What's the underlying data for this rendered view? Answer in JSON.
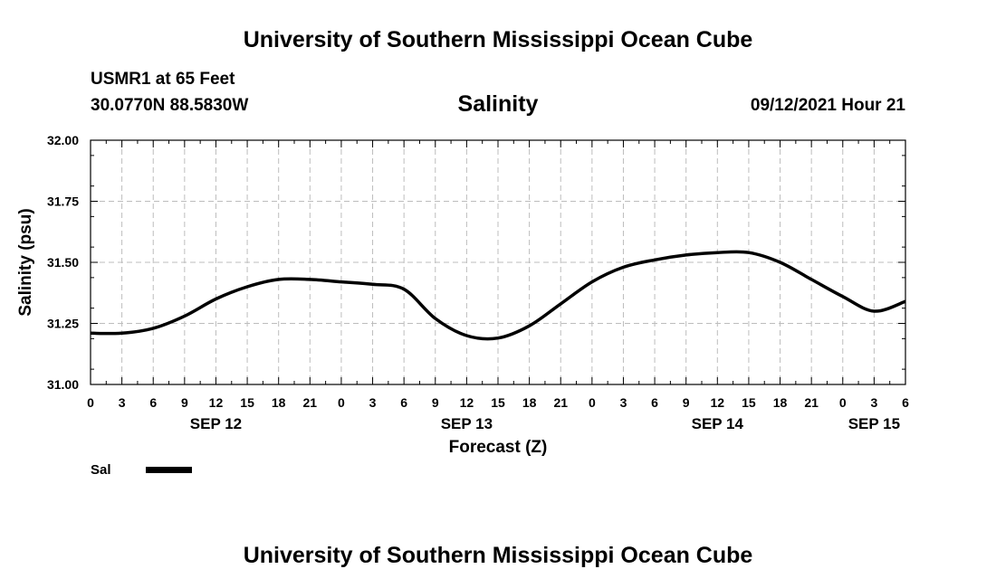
{
  "header": {
    "title": "University of Southern Mississippi Ocean Cube",
    "station": "USMR1 at 65 Feet",
    "coordinates": "30.0770N  88.5830W",
    "run_time": "09/12/2021 Hour 21"
  },
  "footer": {
    "title": "University of Southern Mississippi Ocean Cube"
  },
  "chart_data": {
    "type": "line",
    "title": "Salinity",
    "xlabel": "Forecast (Z)",
    "ylabel": "Salinity (psu)",
    "ylim": [
      31.0,
      32.0
    ],
    "xlim": [
      0,
      78
    ],
    "y_ticks": [
      "31.00",
      "31.25",
      "31.50",
      "31.75",
      "32.00"
    ],
    "x_tick_labels": [
      "0",
      "3",
      "6",
      "9",
      "12",
      "15",
      "18",
      "21",
      "0",
      "3",
      "6",
      "9",
      "12",
      "15",
      "18",
      "21",
      "0",
      "3",
      "6",
      "9",
      "12",
      "15",
      "18",
      "21",
      "0",
      "3",
      "6"
    ],
    "day_labels": [
      {
        "label": "SEP 12",
        "hour": 12
      },
      {
        "label": "SEP 13",
        "hour": 36
      },
      {
        "label": "SEP 14",
        "hour": 60
      },
      {
        "label": "SEP 15",
        "hour": 75
      }
    ],
    "grid": true,
    "legend_position": "bottom-left",
    "series": [
      {
        "name": "Sal",
        "color": "#000000",
        "x": [
          0,
          3,
          6,
          9,
          12,
          15,
          18,
          21,
          24,
          27,
          30,
          33,
          36,
          39,
          42,
          45,
          48,
          51,
          54,
          57,
          60,
          63,
          66,
          69,
          72,
          75,
          78
        ],
        "values": [
          31.21,
          31.21,
          31.23,
          31.28,
          31.35,
          31.4,
          31.43,
          31.43,
          31.42,
          31.41,
          31.39,
          31.27,
          31.2,
          31.19,
          31.24,
          31.33,
          31.42,
          31.48,
          31.51,
          31.53,
          31.54,
          31.54,
          31.5,
          31.43,
          31.36,
          31.3,
          31.34
        ]
      }
    ]
  }
}
